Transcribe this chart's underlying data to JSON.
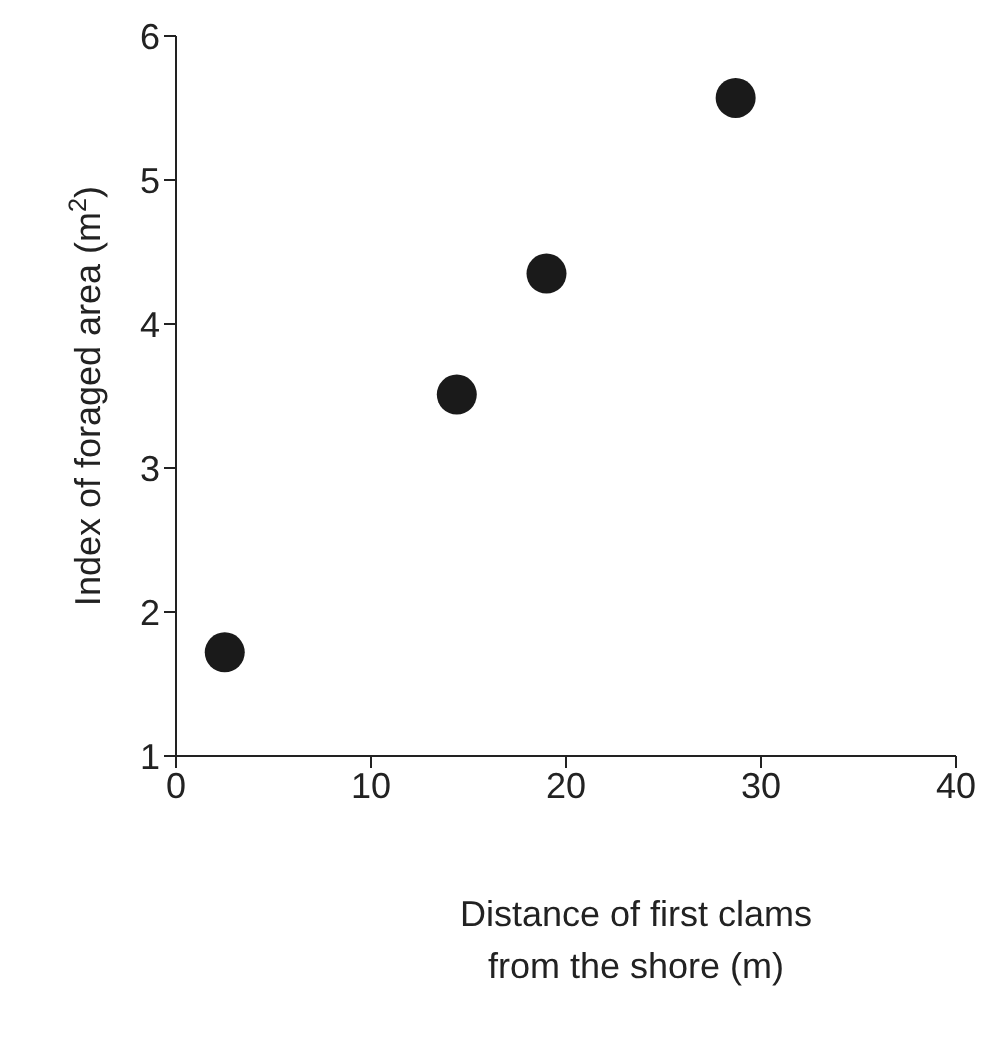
{
  "chart_data": {
    "type": "scatter",
    "xlabel": "Distance of first clams\nfrom the shore (m)",
    "ylabel": "Index of foraged area (m$^{2}$)",
    "x": [
      2.5,
      14.4,
      19.0,
      28.7
    ],
    "values": [
      1.72,
      3.51,
      4.35,
      5.57
    ],
    "color": "#1a1a1a",
    "marker": "circle",
    "xlim": [
      0,
      40
    ],
    "xticks": [
      0,
      10,
      20,
      30,
      40
    ],
    "ylim": [
      1,
      6
    ],
    "yticks": [
      1,
      2,
      3,
      4,
      5,
      6
    ],
    "grid": false
  }
}
